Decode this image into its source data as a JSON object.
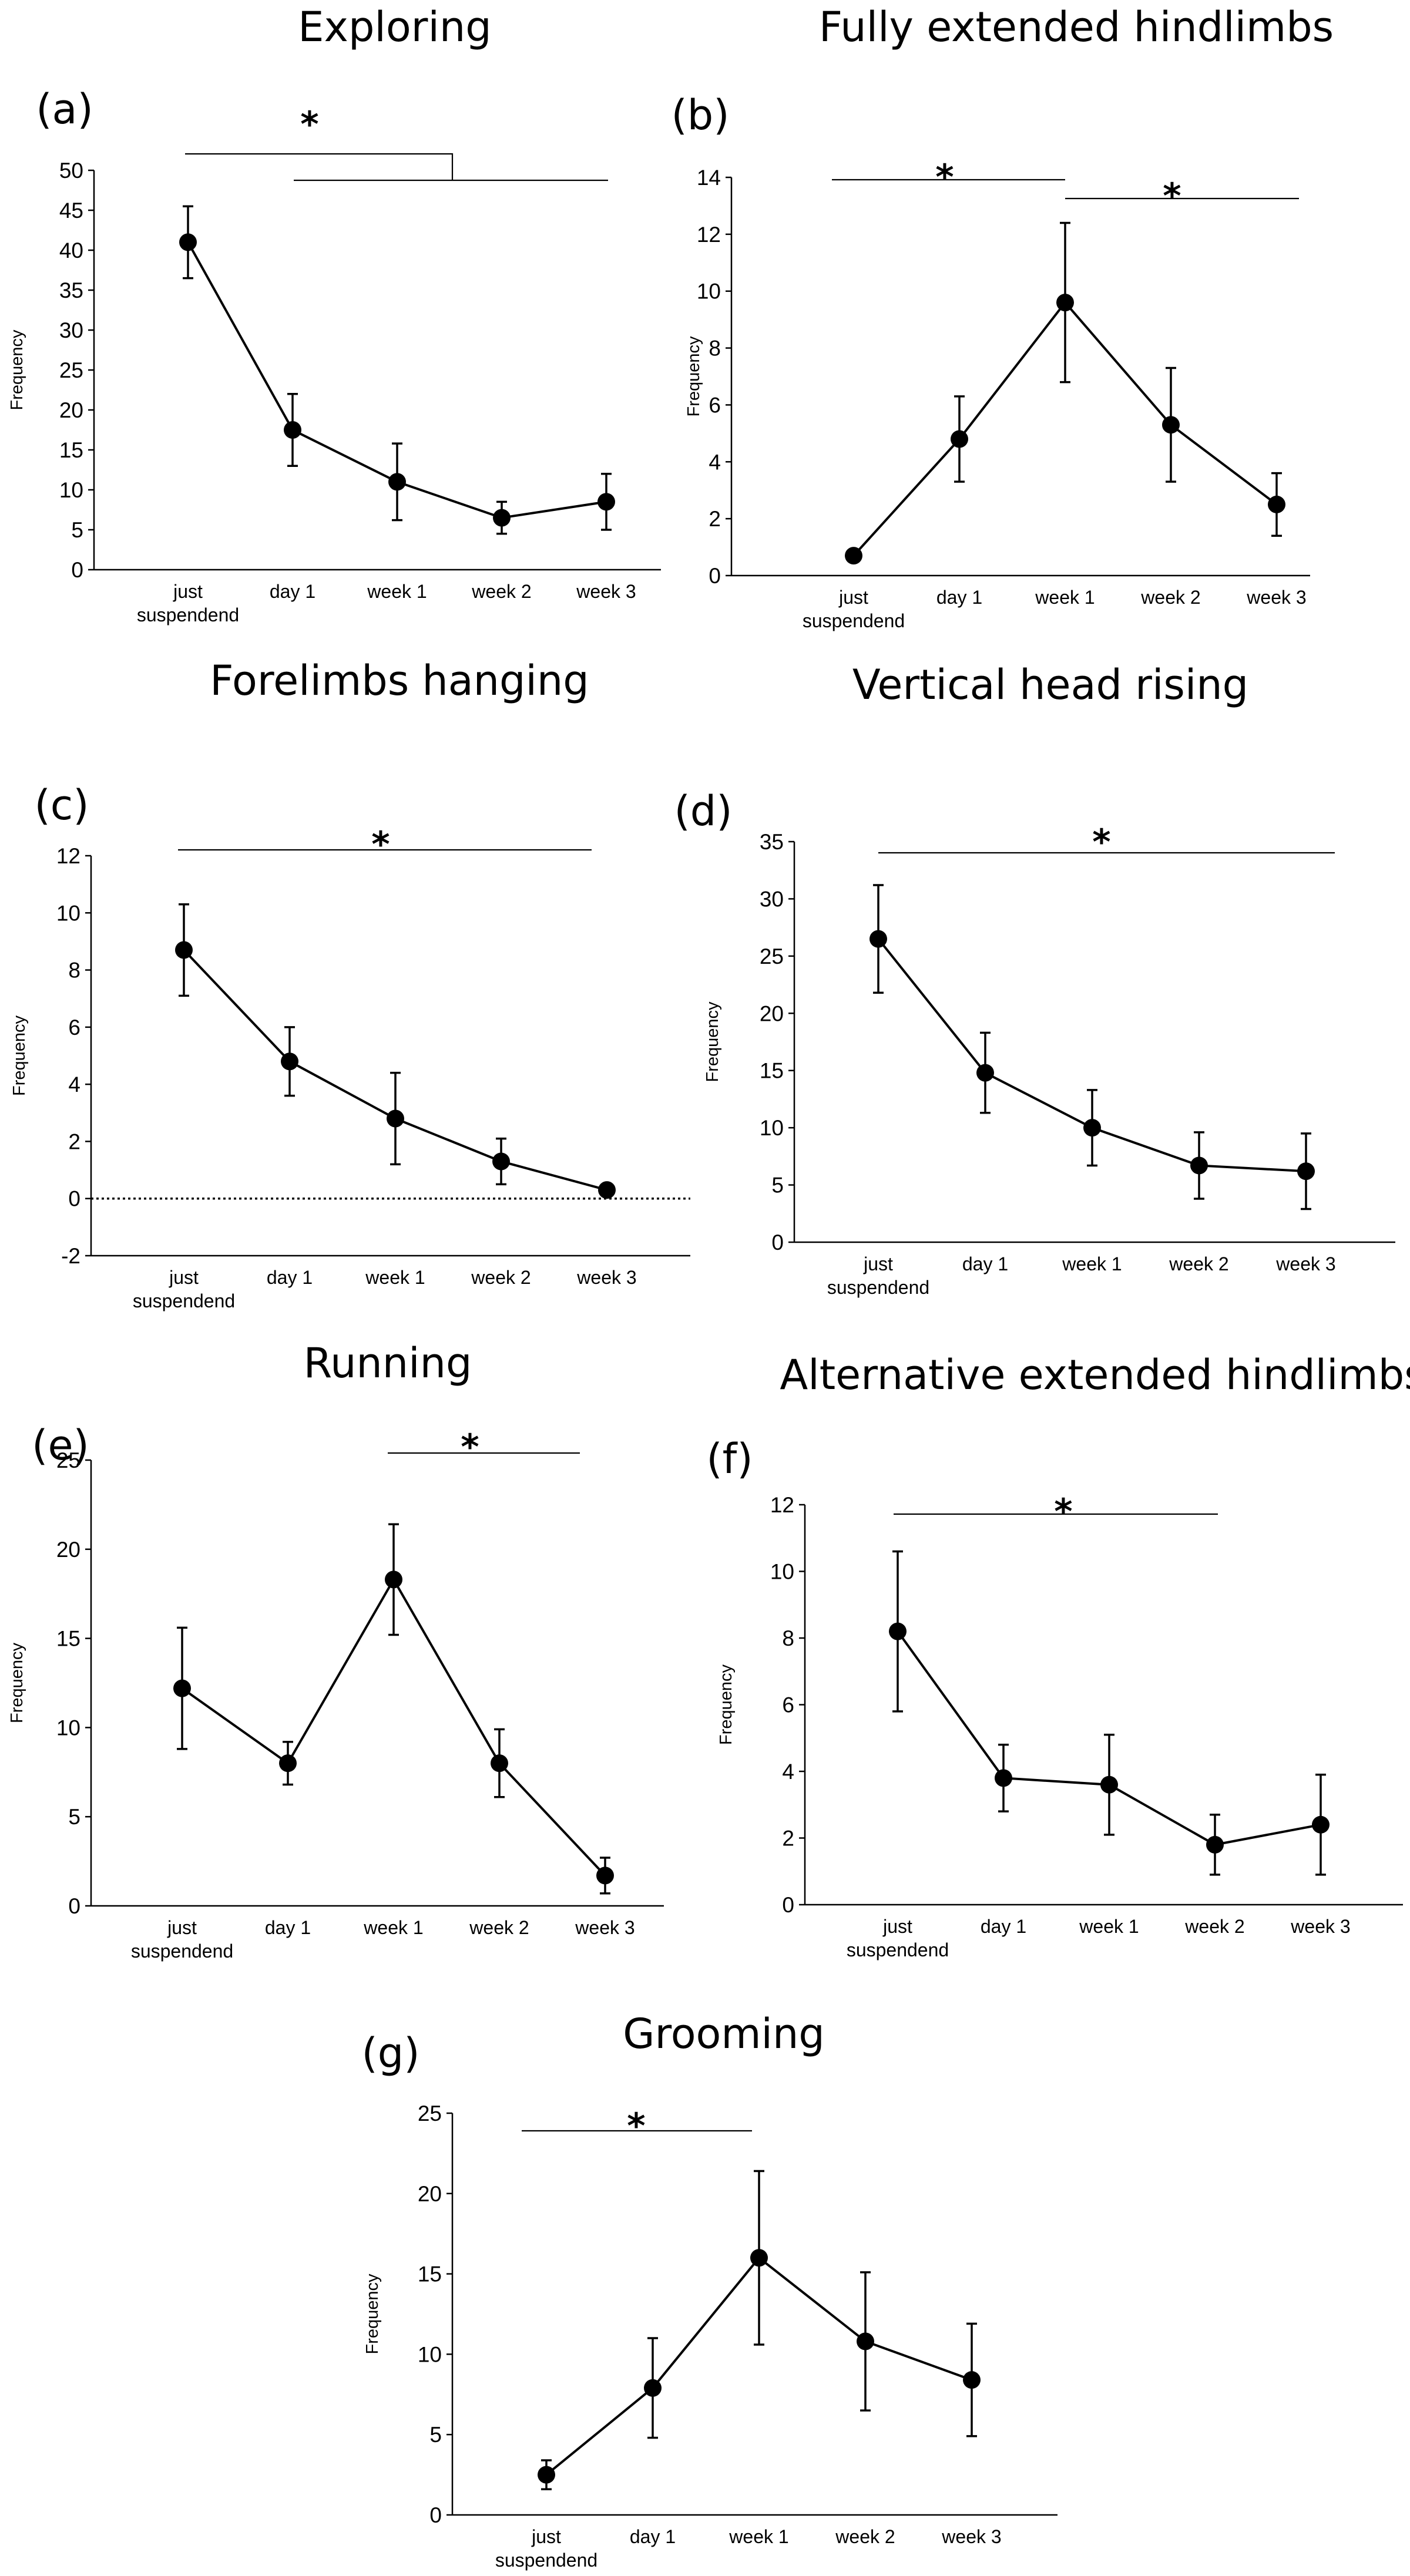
{
  "chart_data": [
    {
      "panel": "(a)",
      "type": "line",
      "title": "Exploring",
      "ylabel": "Frequency",
      "xlabel": "",
      "categories": [
        [
          "just",
          "suspendend"
        ],
        [
          "day 1"
        ],
        [
          "week 1"
        ],
        [
          "week 2"
        ],
        [
          "week 3"
        ]
      ],
      "ylim": [
        0,
        50
      ],
      "yticks": [
        0,
        5,
        10,
        15,
        20,
        25,
        30,
        35,
        40,
        45,
        50
      ],
      "values": [
        41,
        17.5,
        11,
        6.5,
        8.5
      ],
      "errors": [
        4.5,
        4.5,
        4.8,
        2.0,
        3.5
      ],
      "significance": "*",
      "comparison": "just suspendend vs day 1 to week 3"
    },
    {
      "panel": "(b)",
      "type": "line",
      "title": "Fully extended hindlimbs",
      "ylabel": "Frequency",
      "xlabel": "",
      "categories": [
        [
          "just",
          "suspendend"
        ],
        [
          "day 1"
        ],
        [
          "week 1"
        ],
        [
          "week 2"
        ],
        [
          "week 3"
        ]
      ],
      "ylim": [
        0,
        14
      ],
      "yticks": [
        0,
        2,
        4,
        6,
        8,
        10,
        12,
        14
      ],
      "values": [
        0.7,
        4.8,
        9.6,
        5.3,
        2.5
      ],
      "errors": [
        0.2,
        1.5,
        2.8,
        2.0,
        1.1
      ],
      "significance": "*",
      "comparisons": [
        "just suspendend vs week 1",
        "week 1 vs week 3"
      ]
    },
    {
      "panel": "(c)",
      "type": "line",
      "title": "Forelimbs hanging",
      "ylabel": "Frequency",
      "xlabel": "",
      "categories": [
        [
          "just",
          "suspendend"
        ],
        [
          "day 1"
        ],
        [
          "week 1"
        ],
        [
          "week 2"
        ],
        [
          "week 3"
        ]
      ],
      "ylim": [
        -2,
        12
      ],
      "yticks": [
        -2,
        0,
        2,
        4,
        6,
        8,
        10,
        12
      ],
      "values": [
        8.7,
        4.8,
        2.8,
        1.3,
        0.3
      ],
      "errors": [
        1.6,
        1.2,
        1.6,
        0.8,
        0.1
      ],
      "significance": "*",
      "comparison": "just suspendend vs week 3"
    },
    {
      "panel": "(d)",
      "type": "line",
      "title": "Vertical head rising",
      "ylabel": "Frequency",
      "xlabel": "",
      "categories": [
        [
          "just",
          "suspendend"
        ],
        [
          "day 1"
        ],
        [
          "week 1"
        ],
        [
          "week 2"
        ],
        [
          "week 3"
        ]
      ],
      "ylim": [
        0,
        35
      ],
      "yticks": [
        0,
        5,
        10,
        15,
        20,
        25,
        30,
        35
      ],
      "values": [
        26.5,
        14.8,
        10,
        6.7,
        6.2
      ],
      "errors": [
        4.7,
        3.5,
        3.3,
        2.9,
        3.3
      ],
      "significance": "*",
      "comparison": "just suspendend vs week 3"
    },
    {
      "panel": "(e)",
      "type": "line",
      "title": "Running",
      "ylabel": "Frequency",
      "xlabel": "",
      "categories": [
        [
          "just",
          "suspendend"
        ],
        [
          "day 1"
        ],
        [
          "week 1"
        ],
        [
          "week 2"
        ],
        [
          "week 3"
        ]
      ],
      "ylim": [
        0,
        25
      ],
      "yticks": [
        0,
        5,
        10,
        15,
        20,
        25
      ],
      "values": [
        12.2,
        8,
        18.3,
        8,
        1.7
      ],
      "errors": [
        3.4,
        1.2,
        3.1,
        1.9,
        1.0
      ],
      "significance": "*",
      "comparison": "week 1 vs week 3"
    },
    {
      "panel": "(f)",
      "type": "line",
      "title": "Alternative extended hindlimbs",
      "ylabel": "Frequency",
      "xlabel": "",
      "categories": [
        [
          "just",
          "suspendend"
        ],
        [
          "day 1"
        ],
        [
          "week 1"
        ],
        [
          "week 2"
        ],
        [
          "week 3"
        ]
      ],
      "ylim": [
        0,
        12
      ],
      "yticks": [
        0,
        2,
        4,
        6,
        8,
        10,
        12
      ],
      "values": [
        8.2,
        3.8,
        3.6,
        1.8,
        2.4
      ],
      "errors": [
        2.4,
        1.0,
        1.5,
        0.9,
        1.5
      ],
      "significance": "*",
      "comparison": "just suspendend vs week 2"
    },
    {
      "panel": "(g)",
      "type": "line",
      "title": "Grooming",
      "ylabel": "Frequency",
      "xlabel": "",
      "categories": [
        [
          "just",
          "suspendend"
        ],
        [
          "day 1"
        ],
        [
          "week 1"
        ],
        [
          "week 2"
        ],
        [
          "week 3"
        ]
      ],
      "ylim": [
        0,
        25
      ],
      "yticks": [
        0,
        5,
        10,
        15,
        20,
        25
      ],
      "values": [
        2.5,
        7.9,
        16,
        10.8,
        8.4
      ],
      "errors": [
        0.9,
        3.1,
        5.4,
        4.3,
        3.5
      ],
      "significance": "*",
      "comparison": "just suspendend vs week 1"
    }
  ]
}
